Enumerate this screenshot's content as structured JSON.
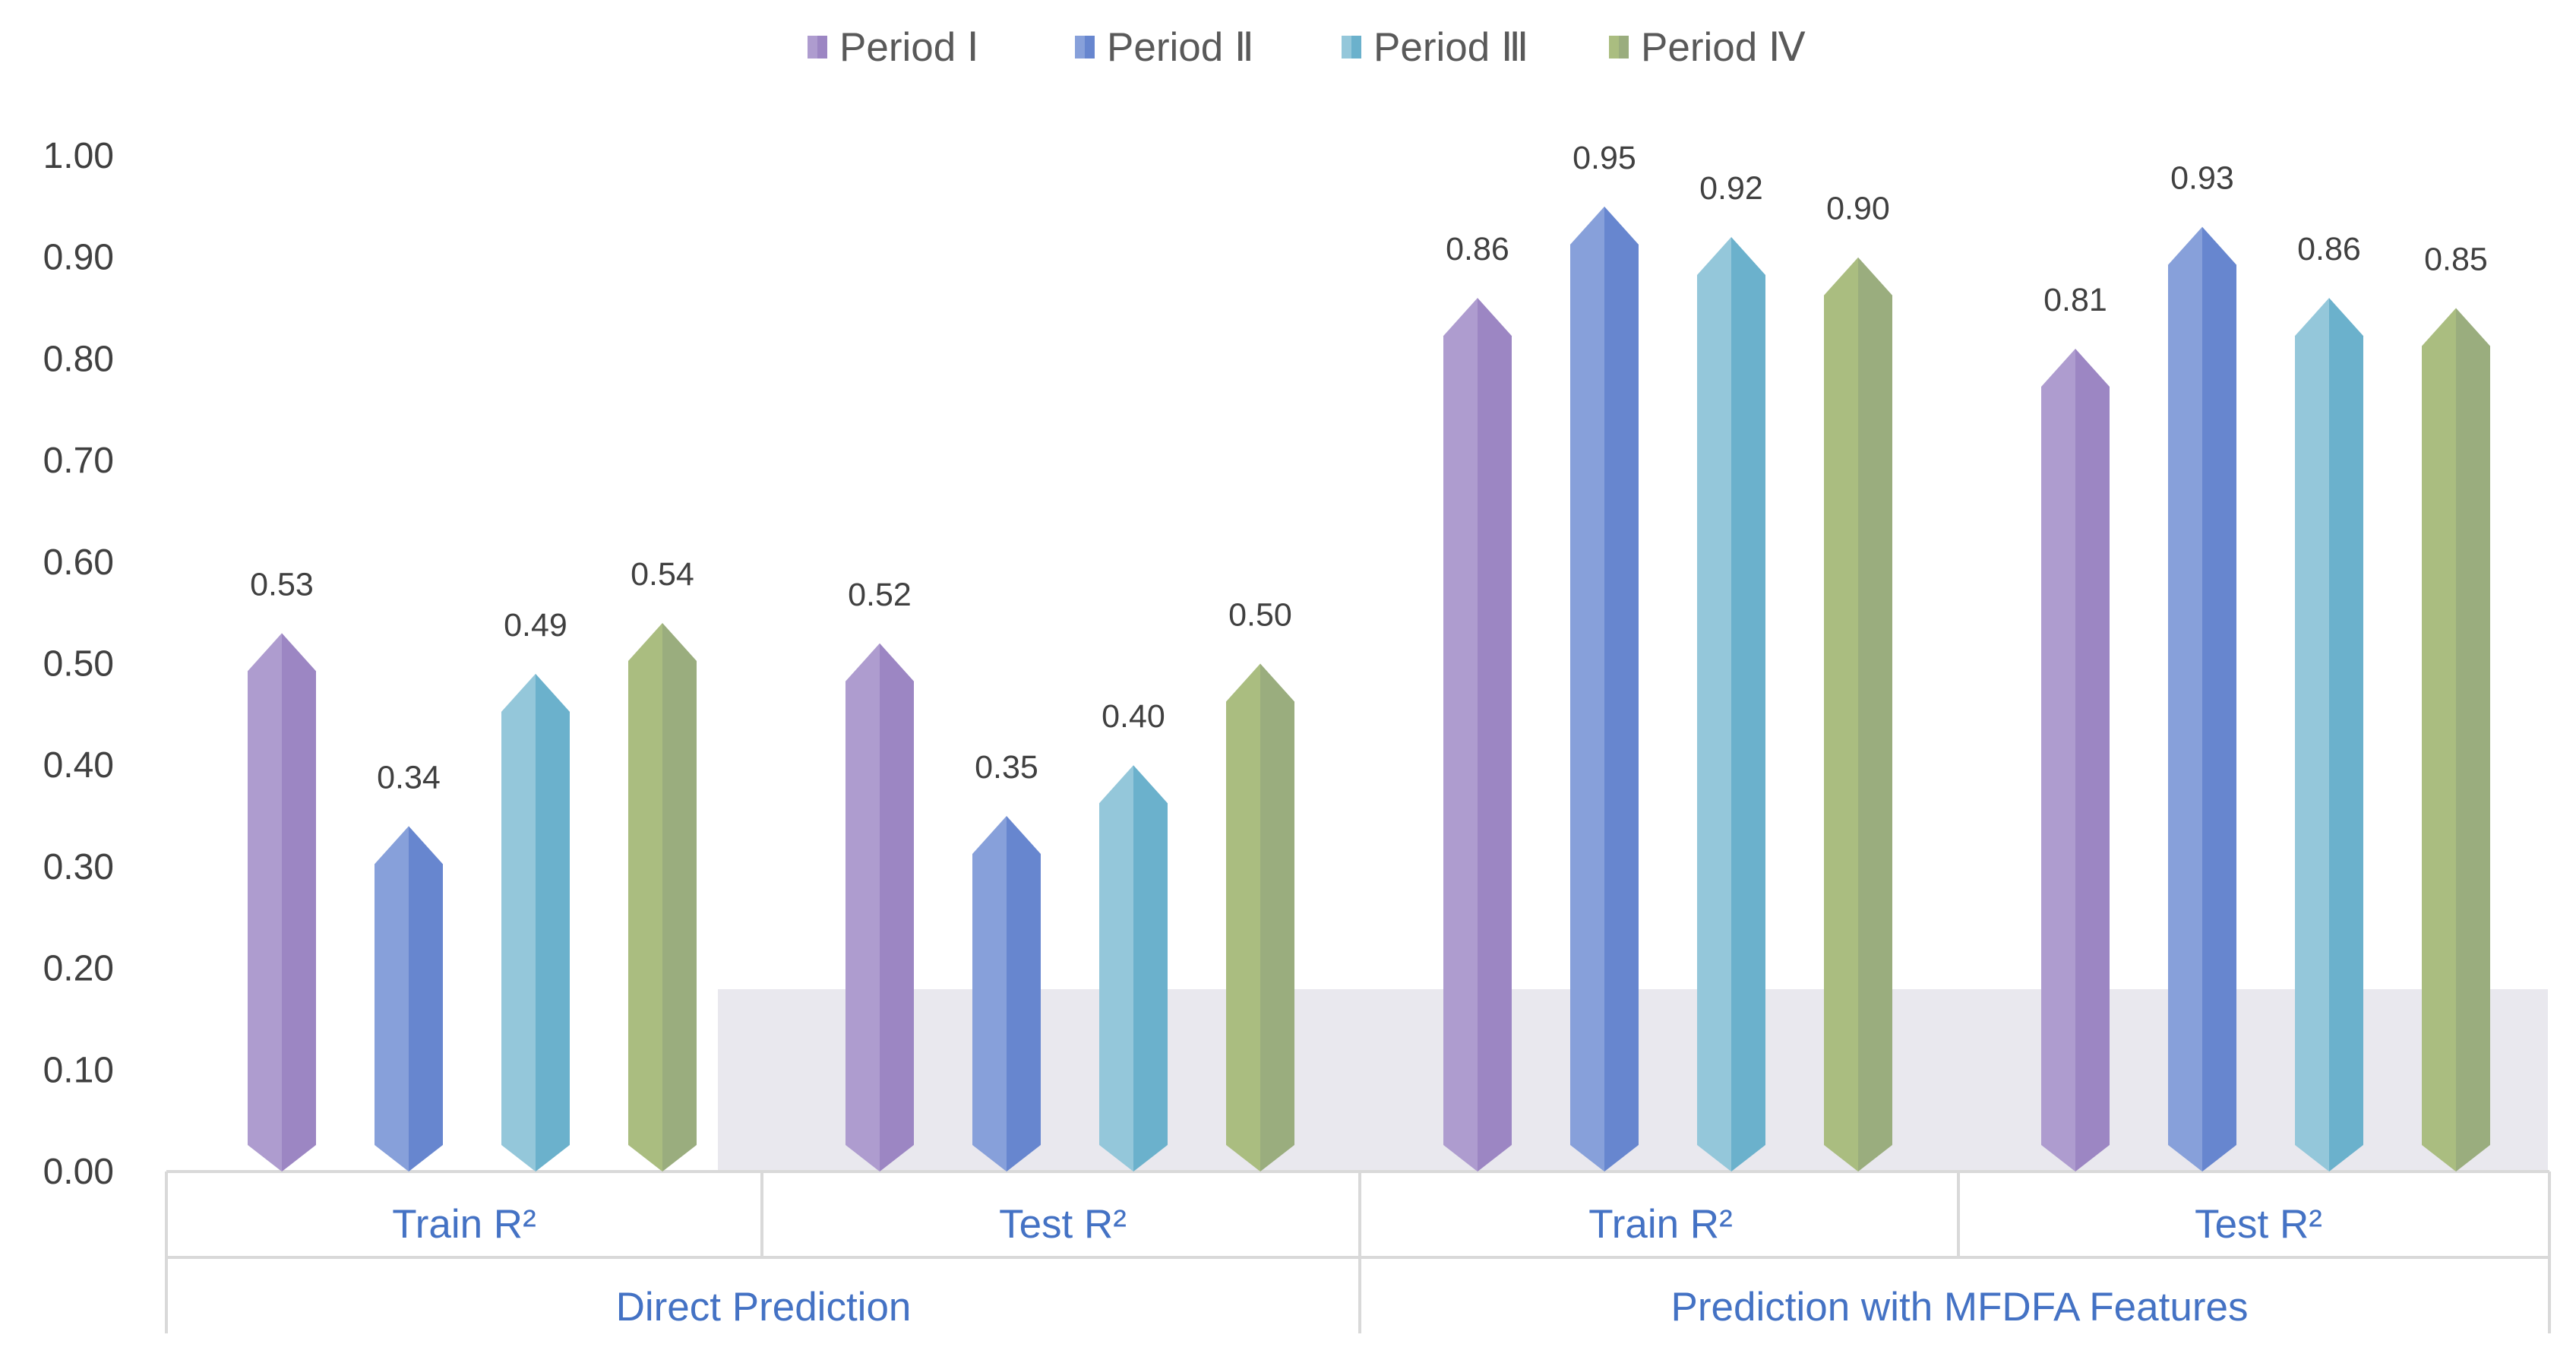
{
  "chart_data": {
    "type": "bar",
    "title": "",
    "xlabel": "",
    "ylabel": "",
    "ylim": [
      0,
      1.0
    ],
    "yticks": [
      0.0,
      0.1,
      0.2,
      0.3,
      0.4,
      0.5,
      0.6,
      0.7,
      0.8,
      0.9,
      1.0
    ],
    "ytick_labels": [
      "0.00",
      "0.10",
      "0.20",
      "0.30",
      "0.40",
      "0.50",
      "0.60",
      "0.70",
      "0.80",
      "0.90",
      "1.00"
    ],
    "categories": [
      "Train R²",
      "Test R²",
      "Train R²",
      "Test R²"
    ],
    "category_groups": [
      {
        "label": "Direct Prediction",
        "span": [
          0,
          1
        ]
      },
      {
        "label": "Prediction with MFDFA Features",
        "span": [
          2,
          3
        ]
      }
    ],
    "series": [
      {
        "name": "Period Ⅰ",
        "values": [
          0.53,
          0.52,
          0.86,
          0.81
        ],
        "labels": [
          "0.53",
          "0.52",
          "0.86",
          "0.81"
        ],
        "color_front": "#AE9CCF",
        "color_side": "#9C86C3"
      },
      {
        "name": "Period Ⅱ",
        "values": [
          0.34,
          0.35,
          0.95,
          0.93
        ],
        "labels": [
          "0.34",
          "0.35",
          "0.95",
          "0.93"
        ],
        "color_front": "#87A0DA",
        "color_side": "#6786CF"
      },
      {
        "name": "Period Ⅲ",
        "values": [
          0.49,
          0.4,
          0.92,
          0.86
        ],
        "labels": [
          "0.49",
          "0.40",
          "0.92",
          "0.86"
        ],
        "color_front": "#94C7DA",
        "color_side": "#6BB1CC"
      },
      {
        "name": "Period Ⅳ",
        "values": [
          0.54,
          0.5,
          0.9,
          0.85
        ],
        "labels": [
          "0.54",
          "0.50",
          "0.90",
          "0.85"
        ],
        "color_front": "#AABD80",
        "color_side": "#9AAD7E"
      }
    ],
    "legend_position": "top-center",
    "grid": false
  }
}
